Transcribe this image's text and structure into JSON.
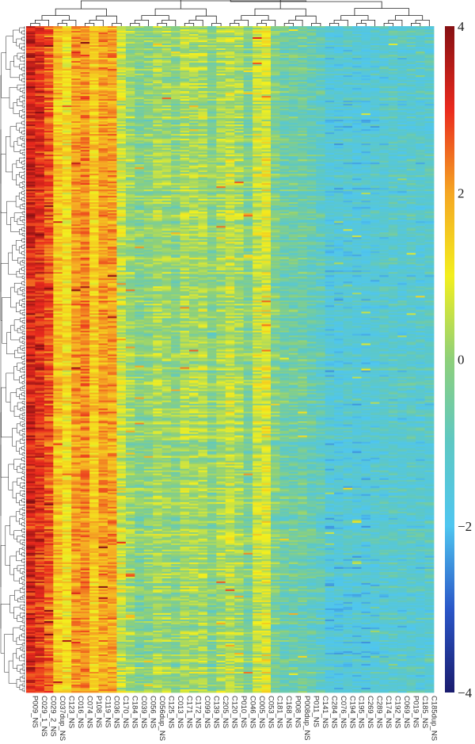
{
  "chart_data": {
    "type": "heatmap",
    "title": "",
    "xlabel": "",
    "ylabel": "",
    "columns": [
      "P009_NS",
      "C029_1_NS",
      "C029_2_NS",
      "C037dup_NS",
      "C123_NS",
      "C016_NS",
      "C074_NS",
      "P108_NS",
      "C119_NS",
      "C036_NS",
      "C170_NS",
      "C184_NS",
      "C039_NS",
      "C056_NS",
      "C056dup_NS",
      "C125_NS",
      "C013_NS",
      "C171_NS",
      "C172_NS",
      "C099_NS",
      "C139_NS",
      "C205_NS",
      "C120_NS",
      "P010_NS",
      "C046_NS",
      "C005_NS",
      "C053_NS",
      "C181_NS",
      "C168_NS",
      "P008_NS",
      "P008dup_NS",
      "P011_NS",
      "C141_NS",
      "C284_NS",
      "C076_NS",
      "C194_NS",
      "C195_NS",
      "C269_NS",
      "C289_NS",
      "C174_NS",
      "C192_NS",
      "C069_NS",
      "P019_NS",
      "C185_NS",
      "C185dup_NS"
    ],
    "row_count": 420,
    "column_group_means": [
      3.2,
      3.0,
      2.6,
      1.6,
      1.2,
      2.0,
      2.2,
      1.5,
      2.0,
      2.0,
      0.6,
      0.1,
      -0.2,
      -0.1,
      0.2,
      0.1,
      -0.1,
      0.3,
      0.2,
      0.3,
      -0.2,
      0.2,
      0.5,
      0.2,
      -0.3,
      0.6,
      0.8,
      -0.3,
      -0.6,
      -0.6,
      -0.6,
      -0.8,
      -1.0,
      -1.5,
      -1.5,
      -1.4,
      -1.5,
      -1.5,
      -1.4,
      -1.3,
      -1.2,
      -1.3,
      -1.2,
      -1.3,
      -1.2
    ],
    "colorbar": {
      "min": -4,
      "max": 4,
      "ticks": [
        "4",
        "2",
        "0",
        "−2",
        "−4"
      ],
      "tick_values": [
        4,
        2,
        0,
        -2,
        -4
      ]
    },
    "colorscale": [
      "#1a1c6e",
      "#2a56c8",
      "#4fc6f0",
      "#5ec8c4",
      "#8ed07a",
      "#f3ef1e",
      "#f5a623",
      "#ea2a1e",
      "#861013"
    ],
    "dendrogram": {
      "columns": true,
      "rows": true,
      "color": "#222222"
    },
    "legend_position": "right"
  }
}
